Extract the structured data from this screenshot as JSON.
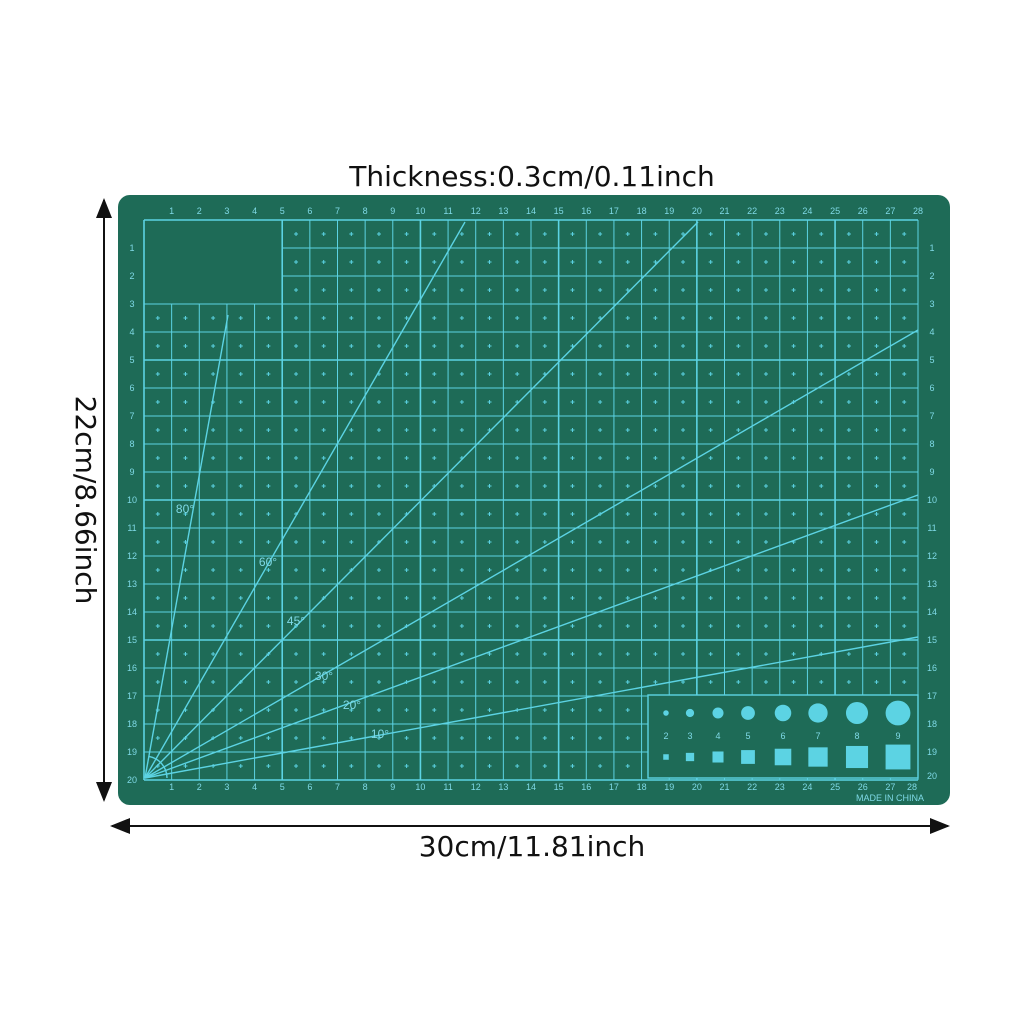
{
  "dimensions": {
    "thickness": "Thickness:0.3cm/0.11inch",
    "height": "22cm/8.66inch",
    "width": "30cm/11.81inch"
  },
  "mat": {
    "colors": {
      "mat": "#1e6b57",
      "lines": "#5cd3e3",
      "text": "#7fd9e6"
    },
    "columns": [
      "1",
      "2",
      "3",
      "4",
      "5",
      "6",
      "7",
      "8",
      "9",
      "10",
      "11",
      "12",
      "13",
      "14",
      "15",
      "16",
      "17",
      "18",
      "19",
      "20",
      "21",
      "22",
      "23",
      "24",
      "25",
      "26",
      "27",
      "28"
    ],
    "rows": [
      "1",
      "2",
      "3",
      "4",
      "5",
      "6",
      "7",
      "8",
      "9",
      "10",
      "11",
      "12",
      "13",
      "14",
      "15",
      "16",
      "17",
      "18",
      "19",
      "20"
    ],
    "angles": [
      {
        "deg": 80,
        "label": "80°"
      },
      {
        "deg": 60,
        "label": "60°"
      },
      {
        "deg": 45,
        "label": "45°"
      },
      {
        "deg": 30,
        "label": "30°"
      },
      {
        "deg": 20,
        "label": "20°"
      },
      {
        "deg": 10,
        "label": "10°"
      }
    ],
    "shape_sizes_mm": [
      "2",
      "3",
      "4",
      "5",
      "6",
      "7",
      "8",
      "9"
    ],
    "made_in": "MADE IN CHINA"
  }
}
